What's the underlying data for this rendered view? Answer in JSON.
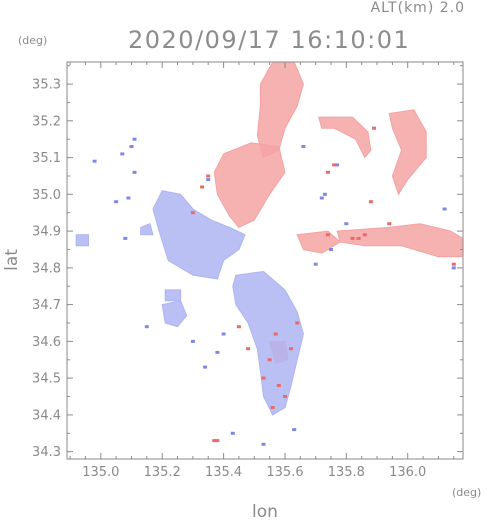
{
  "header": {
    "altitude_label": "ALT(km) 2.0",
    "datetime": "2020/09/17 16:10:01"
  },
  "axes": {
    "y_unit": "(deg)",
    "x_unit": "(deg)",
    "y_label": "lat",
    "x_label": "lon"
  },
  "chart_data": {
    "type": "heatmap",
    "title": "2020/09/17 16:10:01",
    "xlabel": "lon",
    "ylabel": "lat",
    "xlim": [
      134.89,
      136.18
    ],
    "ylim": [
      34.28,
      35.36
    ],
    "xticks": [
      135.0,
      135.2,
      135.4,
      135.6,
      135.8,
      136.0
    ],
    "xtick_labels": [
      "135.0",
      "135.2",
      "135.4",
      "135.6",
      "135.8",
      "136.0"
    ],
    "yticks": [
      34.3,
      34.4,
      34.5,
      34.6,
      34.7,
      34.8,
      34.9,
      35.0,
      35.1,
      35.2,
      35.3
    ],
    "ytick_labels": [
      "34.3",
      "34.4",
      "34.5",
      "34.6",
      "34.7",
      "34.8",
      "34.9",
      "35.0",
      "35.1",
      "35.2",
      "35.3"
    ],
    "colors": {
      "positive": "#f4a3a3",
      "negative": "#aeb4f2",
      "frame": "#8a8a8a"
    },
    "regions": [
      {
        "sign": "positive",
        "points": [
          [
            135.56,
            35.36
          ],
          [
            135.63,
            35.36
          ],
          [
            135.66,
            35.3
          ],
          [
            135.64,
            35.24
          ],
          [
            135.6,
            35.18
          ],
          [
            135.58,
            35.12
          ],
          [
            135.53,
            35.1
          ],
          [
            135.51,
            35.16
          ],
          [
            135.52,
            35.24
          ],
          [
            135.52,
            35.3
          ]
        ]
      },
      {
        "sign": "positive",
        "points": [
          [
            135.4,
            35.11
          ],
          [
            135.49,
            35.14
          ],
          [
            135.58,
            35.13
          ],
          [
            135.6,
            35.06
          ],
          [
            135.55,
            35.0
          ],
          [
            135.5,
            34.93
          ],
          [
            135.45,
            34.91
          ],
          [
            135.42,
            34.94
          ],
          [
            135.38,
            35.0
          ],
          [
            135.37,
            35.06
          ]
        ]
      },
      {
        "sign": "positive",
        "points": [
          [
            135.71,
            35.21
          ],
          [
            135.82,
            35.21
          ],
          [
            135.87,
            35.17
          ],
          [
            135.88,
            35.12
          ],
          [
            135.86,
            35.1
          ],
          [
            135.83,
            35.15
          ],
          [
            135.76,
            35.18
          ],
          [
            135.72,
            35.18
          ]
        ]
      },
      {
        "sign": "positive",
        "points": [
          [
            135.94,
            35.22
          ],
          [
            136.02,
            35.23
          ],
          [
            136.06,
            35.17
          ],
          [
            136.06,
            35.1
          ],
          [
            136.0,
            35.04
          ],
          [
            135.97,
            35.0
          ],
          [
            135.95,
            35.05
          ],
          [
            135.98,
            35.12
          ],
          [
            135.95,
            35.18
          ]
        ]
      },
      {
        "sign": "positive",
        "points": [
          [
            135.77,
            34.9
          ],
          [
            135.94,
            34.91
          ],
          [
            136.04,
            34.92
          ],
          [
            136.14,
            34.9
          ],
          [
            136.18,
            34.88
          ],
          [
            136.18,
            34.83
          ],
          [
            136.1,
            34.83
          ],
          [
            135.98,
            34.86
          ],
          [
            135.86,
            34.86
          ],
          [
            135.78,
            34.87
          ]
        ]
      },
      {
        "sign": "positive",
        "points": [
          [
            135.64,
            34.89
          ],
          [
            135.74,
            34.9
          ],
          [
            135.78,
            34.87
          ],
          [
            135.72,
            34.84
          ],
          [
            135.66,
            34.85
          ]
        ]
      },
      {
        "sign": "positive",
        "points": [
          [
            135.55,
            34.6
          ],
          [
            135.6,
            34.6
          ],
          [
            135.61,
            34.55
          ],
          [
            135.57,
            34.54
          ]
        ]
      },
      {
        "sign": "negative",
        "points": [
          [
            135.2,
            35.01
          ],
          [
            135.26,
            35.0
          ],
          [
            135.3,
            34.96
          ],
          [
            135.36,
            34.93
          ],
          [
            135.42,
            34.91
          ],
          [
            135.47,
            34.89
          ],
          [
            135.45,
            34.85
          ],
          [
            135.4,
            34.82
          ],
          [
            135.38,
            34.77
          ],
          [
            135.3,
            34.78
          ],
          [
            135.22,
            34.82
          ],
          [
            135.19,
            34.9
          ],
          [
            135.17,
            34.96
          ]
        ]
      },
      {
        "sign": "negative",
        "points": [
          [
            135.44,
            34.78
          ],
          [
            135.53,
            34.79
          ],
          [
            135.6,
            34.74
          ],
          [
            135.64,
            34.68
          ],
          [
            135.66,
            34.62
          ],
          [
            135.64,
            34.55
          ],
          [
            135.62,
            34.48
          ],
          [
            135.6,
            34.42
          ],
          [
            135.56,
            34.4
          ],
          [
            135.53,
            34.45
          ],
          [
            135.52,
            34.52
          ],
          [
            135.51,
            34.58
          ],
          [
            135.48,
            34.65
          ],
          [
            135.44,
            34.7
          ],
          [
            135.43,
            34.75
          ]
        ]
      },
      {
        "sign": "negative",
        "points": [
          [
            135.2,
            34.7
          ],
          [
            135.26,
            34.71
          ],
          [
            135.28,
            34.67
          ],
          [
            135.25,
            34.64
          ],
          [
            135.21,
            34.65
          ]
        ]
      },
      {
        "sign": "negative",
        "points": [
          [
            135.21,
            34.74
          ],
          [
            135.26,
            34.74
          ],
          [
            135.26,
            34.71
          ],
          [
            135.21,
            34.71
          ]
        ]
      },
      {
        "sign": "negative",
        "points": [
          [
            134.92,
            34.89
          ],
          [
            134.96,
            34.89
          ],
          [
            134.96,
            34.86
          ],
          [
            134.92,
            34.86
          ]
        ]
      },
      {
        "sign": "negative",
        "points": [
          [
            135.13,
            34.91
          ],
          [
            135.16,
            34.92
          ],
          [
            135.17,
            34.89
          ],
          [
            135.13,
            34.89
          ]
        ]
      }
    ],
    "speckles": [
      {
        "sign": "negative",
        "lon": 135.1,
        "lat": 35.13
      },
      {
        "sign": "negative",
        "lon": 135.11,
        "lat": 35.15
      },
      {
        "sign": "negative",
        "lon": 135.07,
        "lat": 35.11
      },
      {
        "sign": "negative",
        "lon": 134.98,
        "lat": 35.09
      },
      {
        "sign": "negative",
        "lon": 135.11,
        "lat": 35.06
      },
      {
        "sign": "negative",
        "lon": 135.05,
        "lat": 34.98
      },
      {
        "sign": "negative",
        "lon": 135.09,
        "lat": 34.99
      },
      {
        "sign": "negative",
        "lon": 135.08,
        "lat": 34.88
      },
      {
        "sign": "negative",
        "lon": 135.15,
        "lat": 34.64
      },
      {
        "sign": "negative",
        "lon": 135.3,
        "lat": 34.6
      },
      {
        "sign": "negative",
        "lon": 135.38,
        "lat": 34.57
      },
      {
        "sign": "negative",
        "lon": 135.34,
        "lat": 34.53
      },
      {
        "sign": "negative",
        "lon": 135.4,
        "lat": 34.62
      },
      {
        "sign": "negative",
        "lon": 135.53,
        "lat": 34.32
      },
      {
        "sign": "negative",
        "lon": 135.43,
        "lat": 34.35
      },
      {
        "sign": "negative",
        "lon": 135.63,
        "lat": 34.36
      },
      {
        "sign": "negative",
        "lon": 135.75,
        "lat": 34.85
      },
      {
        "sign": "negative",
        "lon": 135.8,
        "lat": 34.92
      },
      {
        "sign": "negative",
        "lon": 135.72,
        "lat": 34.99
      },
      {
        "sign": "negative",
        "lon": 135.73,
        "lat": 35.0
      },
      {
        "sign": "negative",
        "lon": 135.7,
        "lat": 34.81
      },
      {
        "sign": "negative",
        "lon": 136.12,
        "lat": 34.96
      },
      {
        "sign": "negative",
        "lon": 136.15,
        "lat": 34.8
      },
      {
        "sign": "negative",
        "lon": 135.77,
        "lat": 35.08
      },
      {
        "sign": "negative",
        "lon": 135.66,
        "lat": 35.13
      },
      {
        "sign": "negative",
        "lon": 135.35,
        "lat": 35.04
      },
      {
        "sign": "positive",
        "lon": 135.38,
        "lat": 34.33
      },
      {
        "sign": "positive",
        "lon": 135.37,
        "lat": 34.33
      },
      {
        "sign": "positive",
        "lon": 135.56,
        "lat": 34.42
      },
      {
        "sign": "positive",
        "lon": 135.58,
        "lat": 34.48
      },
      {
        "sign": "positive",
        "lon": 135.55,
        "lat": 34.55
      },
      {
        "sign": "positive",
        "lon": 135.62,
        "lat": 34.58
      },
      {
        "sign": "positive",
        "lon": 135.48,
        "lat": 34.58
      },
      {
        "sign": "positive",
        "lon": 135.45,
        "lat": 34.64
      },
      {
        "sign": "positive",
        "lon": 135.64,
        "lat": 34.65
      },
      {
        "sign": "positive",
        "lon": 135.53,
        "lat": 34.5
      },
      {
        "sign": "positive",
        "lon": 135.6,
        "lat": 34.45
      },
      {
        "sign": "positive",
        "lon": 135.57,
        "lat": 34.62
      },
      {
        "sign": "positive",
        "lon": 135.35,
        "lat": 35.05
      },
      {
        "sign": "positive",
        "lon": 135.3,
        "lat": 34.95
      },
      {
        "sign": "positive",
        "lon": 135.33,
        "lat": 35.02
      },
      {
        "sign": "positive",
        "lon": 135.86,
        "lat": 34.89
      },
      {
        "sign": "positive",
        "lon": 135.84,
        "lat": 34.88
      },
      {
        "sign": "positive",
        "lon": 135.82,
        "lat": 34.88
      },
      {
        "sign": "positive",
        "lon": 135.74,
        "lat": 34.89
      },
      {
        "sign": "positive",
        "lon": 135.74,
        "lat": 35.06
      },
      {
        "sign": "positive",
        "lon": 135.76,
        "lat": 35.08
      },
      {
        "sign": "positive",
        "lon": 135.94,
        "lat": 34.92
      },
      {
        "sign": "positive",
        "lon": 135.88,
        "lat": 34.98
      },
      {
        "sign": "positive",
        "lon": 135.89,
        "lat": 35.18
      },
      {
        "sign": "positive",
        "lon": 136.15,
        "lat": 34.81
      }
    ]
  }
}
